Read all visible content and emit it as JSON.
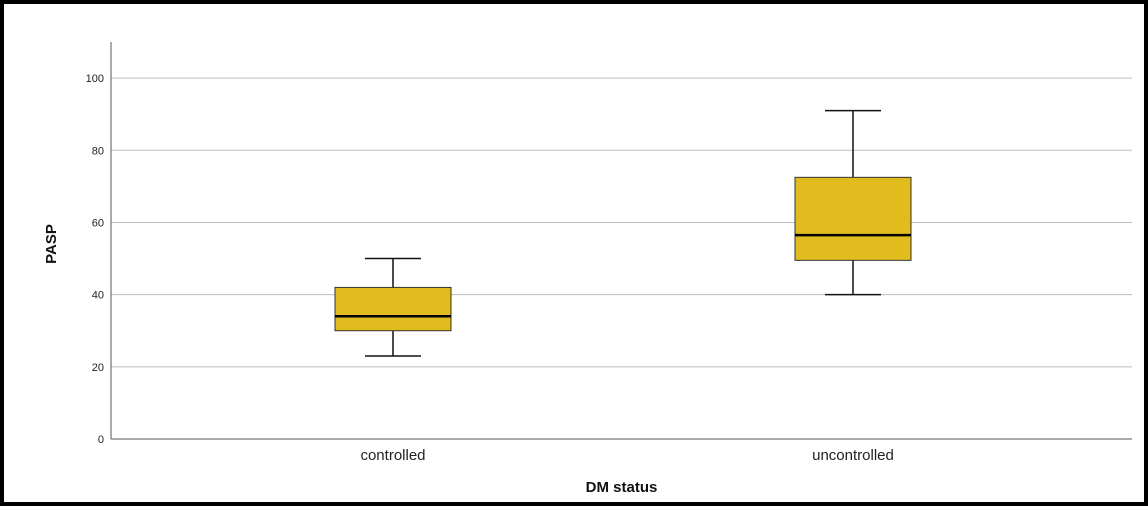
{
  "chart_data": {
    "type": "boxplot",
    "title": "",
    "xlabel": "DM status",
    "ylabel": "PASP",
    "ylim": [
      0,
      110
    ],
    "yticks": [
      0,
      20,
      40,
      60,
      80,
      100
    ],
    "grid": true,
    "categories": [
      "controlled",
      "uncontrolled"
    ],
    "boxes": [
      {
        "category": "controlled",
        "min": 23,
        "q1": 30,
        "median": 34,
        "q3": 42,
        "max": 50
      },
      {
        "category": "uncontrolled",
        "min": 40,
        "q1": 49.5,
        "median": 56.5,
        "q3": 72.5,
        "max": 91
      }
    ],
    "colors": {
      "box_fill": "#E1BC1E",
      "box_stroke": "#333333",
      "gridline": "#BDBDBD"
    }
  }
}
